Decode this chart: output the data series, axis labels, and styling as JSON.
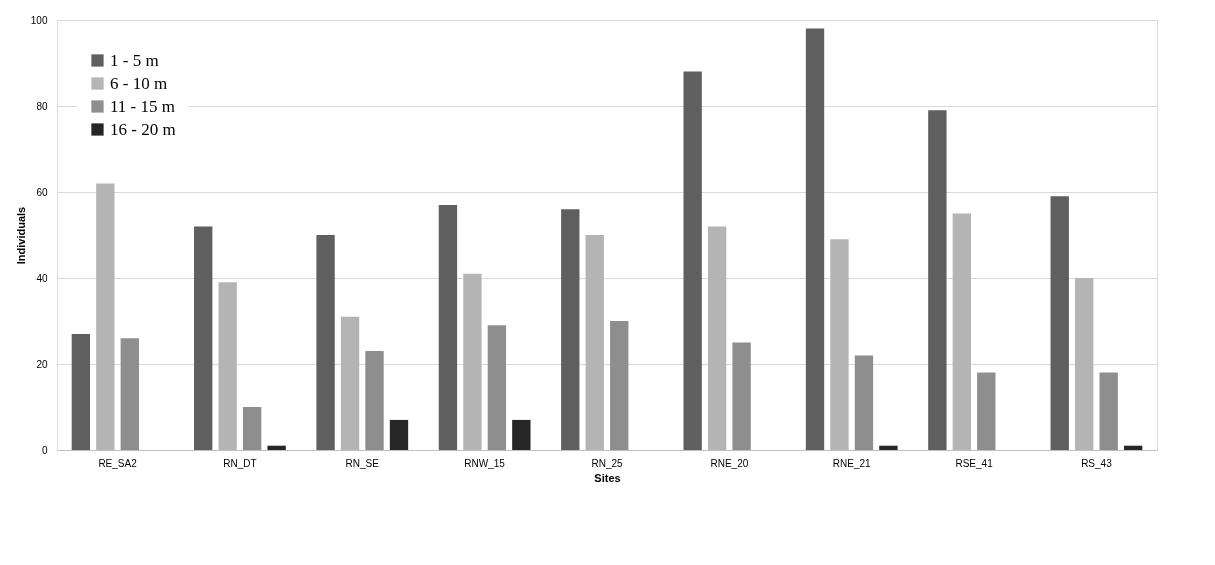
{
  "chart_data": {
    "type": "bar",
    "xlabel": "Sites",
    "ylabel": "Individuals",
    "categories": [
      "RE_SA2",
      "RN_DT",
      "RN_SE",
      "RNW_15",
      "RN_25",
      "RNE_20",
      "RNE_21",
      "RSE_41",
      "RS_43"
    ],
    "series": [
      {
        "name": "1 - 5 m",
        "color": "#5f5f5f",
        "values": [
          27,
          52,
          50,
          57,
          56,
          88,
          98,
          79,
          59
        ]
      },
      {
        "name": "6 - 10 m",
        "color": "#b4b4b4",
        "values": [
          62,
          39,
          31,
          41,
          50,
          52,
          49,
          55,
          40
        ]
      },
      {
        "name": "11 - 15 m",
        "color": "#8e8e8e",
        "values": [
          26,
          10,
          23,
          29,
          30,
          25,
          22,
          18,
          18
        ]
      },
      {
        "name": "16 - 20 m",
        "color": "#262626",
        "values": [
          0,
          1,
          7,
          7,
          0,
          0,
          1,
          0,
          1
        ]
      }
    ],
    "ylim": [
      0,
      100
    ],
    "yticks": [
      0,
      20,
      40,
      60,
      80,
      100
    ],
    "grid": "y",
    "legend": "top left"
  }
}
